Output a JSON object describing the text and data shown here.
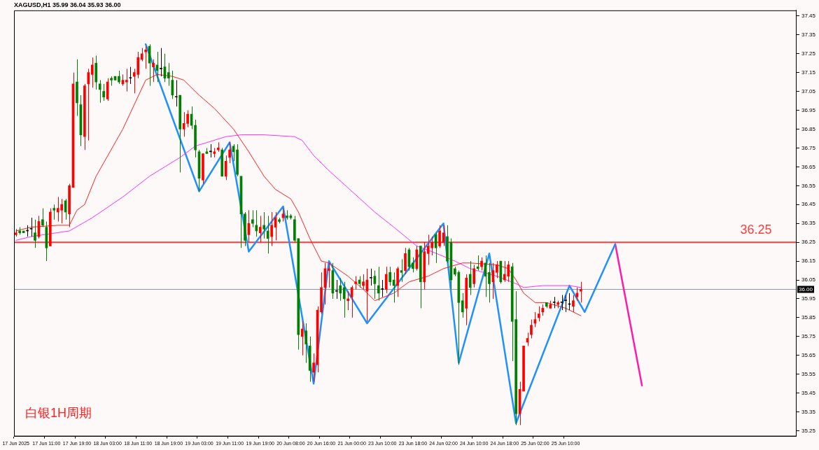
{
  "chart_data": {
    "type": "candlestick",
    "title": "XAGUSD,H1 35.99 36.04 35.93 36.00",
    "categories": [
      "17 Jun 2025",
      null,
      null,
      null,
      null,
      null,
      null,
      null,
      "17 Jun 11:00",
      null,
      null,
      null,
      null,
      null,
      null,
      null,
      "17 Jun 19:00",
      null,
      null,
      null,
      null,
      null,
      null,
      null,
      "18 Jun 03:00",
      null,
      null,
      null,
      null,
      null,
      null,
      null,
      "18 Jun 11:00",
      null,
      null,
      null,
      null,
      null,
      null,
      null,
      "18 Jun 19:00",
      null,
      null,
      null,
      null,
      null,
      null,
      null,
      "19 Jun 03:00",
      null,
      null,
      null,
      null,
      null,
      null,
      null,
      "19 Jun 11:00",
      null,
      null,
      null,
      null,
      null,
      null,
      null,
      "19 Jun 19:00",
      null,
      null,
      null,
      null,
      null,
      null,
      null,
      "20 Jun 08:00",
      null,
      null,
      null,
      null,
      null,
      null,
      null,
      "20 Jun 16:00",
      null,
      null,
      null,
      null,
      null,
      null,
      null,
      "21 Jun 00:00",
      null,
      null,
      null,
      null,
      null,
      null,
      null,
      "23 Jun 10:00",
      null,
      null,
      null,
      null,
      null,
      null,
      null,
      "23 Jun 18:00",
      null,
      null,
      null,
      null,
      null,
      null,
      null,
      "24 Jun 02:00",
      null,
      null,
      null,
      null,
      null,
      null,
      null,
      "24 Jun 10:00",
      null,
      null,
      null,
      null,
      null,
      null,
      null,
      "24 Jun 18:00",
      null,
      null,
      null,
      null,
      null,
      null,
      null,
      "25 Jun 02:00",
      null,
      null,
      null,
      null,
      null,
      null,
      null,
      "25 Jun 10:00",
      null,
      null,
      null,
      null,
      null,
      null,
      null,
      null,
      null,
      null,
      null,
      null,
      null,
      null,
      null,
      null,
      null,
      null,
      null,
      null,
      null,
      null,
      null,
      null,
      null,
      null,
      null,
      null,
      null,
      null,
      null,
      null,
      null,
      null,
      null,
      null,
      null,
      null,
      null,
      null,
      null,
      null,
      null,
      null,
      null,
      null,
      null,
      null,
      null,
      null,
      null,
      null,
      null,
      null,
      null,
      null,
      null,
      null,
      null,
      null
    ],
    "ylim": [
      35.22,
      37.48
    ],
    "yticks": [
      35.25,
      35.35,
      35.45,
      35.55,
      35.65,
      35.75,
      35.85,
      35.95,
      36.05,
      36.15,
      36.25,
      36.35,
      36.45,
      36.55,
      36.65,
      36.75,
      36.85,
      36.95,
      37.05,
      37.15,
      37.25,
      37.35,
      37.45
    ],
    "ref_lines": [
      {
        "axis": "y",
        "value": 36.25,
        "label": "36.25",
        "color": "#ff3b3b"
      },
      {
        "axis": "y",
        "value": 36.0,
        "label": "36.00",
        "color": "#8496ad"
      }
    ],
    "annotations": [
      "白银1H周期"
    ],
    "series": [
      {
        "ohlc": [
          [
            36.29,
            36.32,
            36.28,
            36.3
          ],
          [
            36.31,
            36.33,
            36.29,
            36.3
          ],
          [
            36.31,
            36.31,
            36.3,
            36.3
          ],
          [
            36.31,
            36.34,
            36.28,
            36.31
          ],
          [
            36.32,
            36.38,
            36.28,
            36.32
          ],
          [
            36.3,
            36.37,
            36.22,
            36.26
          ],
          [
            36.28,
            36.39,
            36.27,
            36.36
          ],
          [
            36.37,
            36.43,
            36.33,
            36.34
          ],
          [
            36.33,
            36.36,
            36.15,
            36.22
          ],
          [
            36.23,
            36.43,
            36.23,
            36.41
          ],
          [
            36.43,
            36.45,
            36.37,
            36.42
          ],
          [
            36.41,
            36.49,
            36.36,
            36.43
          ],
          [
            36.42,
            36.48,
            36.35,
            36.45
          ],
          [
            36.47,
            36.48,
            36.37,
            36.41
          ],
          [
            36.4,
            36.56,
            36.33,
            36.55
          ],
          [
            36.54,
            37.15,
            36.54,
            37.09
          ],
          [
            37.1,
            37.22,
            36.92,
            36.99
          ],
          [
            36.98,
            37.03,
            36.76,
            36.82
          ],
          [
            36.81,
            37.09,
            36.74,
            37.08
          ],
          [
            37.09,
            37.17,
            36.79,
            37.15
          ],
          [
            37.14,
            37.23,
            37.07,
            37.19
          ],
          [
            37.2,
            37.24,
            37.06,
            37.1
          ],
          [
            37.09,
            37.11,
            36.99,
            37.06
          ],
          [
            37.05,
            37.09,
            37.0,
            37.02
          ],
          [
            37.01,
            37.12,
            37.0,
            37.1
          ],
          [
            37.12,
            37.13,
            37.08,
            37.11
          ],
          [
            37.13,
            37.13,
            37.11,
            37.11
          ],
          [
            37.13,
            37.16,
            37.09,
            37.1
          ],
          [
            37.09,
            37.14,
            37.08,
            37.11
          ],
          [
            37.1,
            37.17,
            37.05,
            37.11
          ],
          [
            37.12,
            37.18,
            37.09,
            37.12
          ],
          [
            37.13,
            37.17,
            37.04,
            37.15
          ],
          [
            37.14,
            37.26,
            37.12,
            37.23
          ],
          [
            37.22,
            37.28,
            37.21,
            37.25
          ],
          [
            37.26,
            37.29,
            37.17,
            37.27
          ],
          [
            37.29,
            37.3,
            37.08,
            37.2
          ],
          [
            37.18,
            37.22,
            37.1,
            37.2
          ],
          [
            37.19,
            37.26,
            37.1,
            37.16
          ],
          [
            37.17,
            37.28,
            37.13,
            37.17
          ],
          [
            37.18,
            37.25,
            37.1,
            37.12
          ],
          [
            37.15,
            37.2,
            37.08,
            37.12
          ],
          [
            37.11,
            37.16,
            37.01,
            37.03
          ],
          [
            37.02,
            37.11,
            36.97,
            37.02
          ],
          [
            37.03,
            37.03,
            36.62,
            36.85
          ],
          [
            36.85,
            36.94,
            36.81,
            36.88
          ],
          [
            36.88,
            36.95,
            36.86,
            36.93
          ],
          [
            36.93,
            36.97,
            36.85,
            36.87
          ],
          [
            36.87,
            36.9,
            36.7,
            36.74
          ],
          [
            36.73,
            36.74,
            36.52,
            36.59
          ],
          [
            36.58,
            36.72,
            36.56,
            36.72
          ],
          [
            36.73,
            36.75,
            36.72,
            36.72
          ],
          [
            36.73,
            36.77,
            36.7,
            36.73
          ],
          [
            36.72,
            36.75,
            36.7,
            36.73
          ],
          [
            36.74,
            36.78,
            36.73,
            36.75
          ],
          [
            36.74,
            36.75,
            36.6,
            36.6
          ],
          [
            36.6,
            36.71,
            36.58,
            36.68
          ],
          [
            36.7,
            36.78,
            36.67,
            36.74
          ],
          [
            36.76,
            36.77,
            36.68,
            36.73
          ],
          [
            36.74,
            36.77,
            36.6,
            36.61
          ],
          [
            36.6,
            36.6,
            36.22,
            36.4
          ],
          [
            36.4,
            36.41,
            36.23,
            36.26
          ],
          [
            36.29,
            36.42,
            36.25,
            36.35
          ],
          [
            36.37,
            36.42,
            36.33,
            36.35
          ],
          [
            36.34,
            36.42,
            36.28,
            36.31
          ],
          [
            36.3,
            36.39,
            36.25,
            36.33
          ],
          [
            36.34,
            36.41,
            36.27,
            36.32
          ],
          [
            36.31,
            36.39,
            36.19,
            36.27
          ],
          [
            36.28,
            36.41,
            36.23,
            36.34
          ],
          [
            36.33,
            36.41,
            36.26,
            36.38
          ],
          [
            36.37,
            36.38,
            36.35,
            36.36
          ],
          [
            36.38,
            36.43,
            36.36,
            36.4
          ],
          [
            36.39,
            36.42,
            36.37,
            36.38
          ],
          [
            36.39,
            36.4,
            36.37,
            36.38
          ],
          [
            36.37,
            36.39,
            36.25,
            36.26
          ],
          [
            36.27,
            36.27,
            35.68,
            35.76
          ],
          [
            35.75,
            35.83,
            35.65,
            35.79
          ],
          [
            35.78,
            35.82,
            35.61,
            35.71
          ],
          [
            35.7,
            35.75,
            35.51,
            35.57
          ],
          [
            35.56,
            35.66,
            35.51,
            35.61
          ],
          [
            35.6,
            35.91,
            35.56,
            35.89
          ],
          [
            35.88,
            36.09,
            35.87,
            36.01
          ],
          [
            36.01,
            36.14,
            35.92,
            36.11
          ],
          [
            36.1,
            36.14,
            36.01,
            36.11
          ],
          [
            36.1,
            36.14,
            35.95,
            35.98
          ],
          [
            35.99,
            36.05,
            35.95,
            35.99
          ],
          [
            36.02,
            36.06,
            35.94,
            35.98
          ],
          [
            36.01,
            36.04,
            35.85,
            35.95
          ],
          [
            35.94,
            35.99,
            35.89,
            35.95
          ],
          [
            35.96,
            36.02,
            35.85,
            36.01
          ],
          [
            36.03,
            36.07,
            36.0,
            36.04
          ],
          [
            36.05,
            36.07,
            36.01,
            36.03
          ],
          [
            36.02,
            36.08,
            36.0,
            36.04
          ],
          [
            35.99,
            36.11,
            35.83,
            36.05
          ],
          [
            36.06,
            36.11,
            36.02,
            36.06
          ],
          [
            36.07,
            36.1,
            35.95,
            36.03
          ],
          [
            36.02,
            36.12,
            35.94,
            35.98
          ],
          [
            36.0,
            36.05,
            35.96,
            36.0
          ],
          [
            36.0,
            36.12,
            35.98,
            36.08
          ],
          [
            36.09,
            36.12,
            36.02,
            36.04
          ],
          [
            36.05,
            36.09,
            35.93,
            36.02
          ],
          [
            36.02,
            36.12,
            35.96,
            36.11
          ],
          [
            36.1,
            36.16,
            36.04,
            36.09
          ],
          [
            36.1,
            36.22,
            36.08,
            36.19
          ],
          [
            36.21,
            36.22,
            36.1,
            36.12
          ],
          [
            36.14,
            36.17,
            36.09,
            36.11
          ],
          [
            36.11,
            36.23,
            36.1,
            36.21
          ],
          [
            36.23,
            36.23,
            35.9,
            36.04
          ],
          [
            36.04,
            36.25,
            36.0,
            36.2
          ],
          [
            36.19,
            36.29,
            36.13,
            36.23
          ],
          [
            36.22,
            36.28,
            36.18,
            36.25
          ],
          [
            36.29,
            36.3,
            36.14,
            36.22
          ],
          [
            36.23,
            36.34,
            36.22,
            36.31
          ],
          [
            36.25,
            36.34,
            36.23,
            36.3
          ],
          [
            36.28,
            36.34,
            36.14,
            36.15
          ],
          [
            36.25,
            36.27,
            36.0,
            36.05
          ],
          [
            36.11,
            36.12,
            36.07,
            36.08
          ],
          [
            36.09,
            36.1,
            35.6,
            35.93
          ],
          [
            35.94,
            35.98,
            35.85,
            35.88
          ],
          [
            35.9,
            36.08,
            35.81,
            36.06
          ],
          [
            36.08,
            36.15,
            35.97,
            36.01
          ],
          [
            36.03,
            36.13,
            36.01,
            36.11
          ],
          [
            36.12,
            36.18,
            36.1,
            36.11
          ],
          [
            36.12,
            36.17,
            36.1,
            36.15
          ],
          [
            36.14,
            36.18,
            35.96,
            36.07
          ],
          [
            36.09,
            36.14,
            35.93,
            36.03
          ],
          [
            36.04,
            36.14,
            35.95,
            36.1
          ],
          [
            36.09,
            36.15,
            36.06,
            36.13
          ],
          [
            36.15,
            36.15,
            36.03,
            36.04
          ],
          [
            36.05,
            36.15,
            36.04,
            36.08
          ],
          [
            36.07,
            36.15,
            36.04,
            36.13
          ],
          [
            36.12,
            36.14,
            35.62,
            35.83
          ],
          [
            35.84,
            35.99,
            35.28,
            35.34
          ],
          [
            35.34,
            35.51,
            35.28,
            35.47
          ],
          [
            35.46,
            35.7,
            35.46,
            35.7
          ],
          [
            35.72,
            35.77,
            35.7,
            35.74
          ],
          [
            35.76,
            35.84,
            35.74,
            35.81
          ],
          [
            35.82,
            35.88,
            35.8,
            35.84
          ],
          [
            35.85,
            35.91,
            35.83,
            35.87
          ],
          [
            35.88,
            35.92,
            35.86,
            35.9
          ],
          [
            35.93,
            35.93,
            35.9,
            35.91
          ],
          [
            35.9,
            35.94,
            35.9,
            35.92
          ],
          [
            35.93,
            35.96,
            35.9,
            35.93
          ],
          [
            35.92,
            35.94,
            35.9,
            35.93
          ],
          [
            35.93,
            35.97,
            35.89,
            35.93
          ],
          [
            35.94,
            35.97,
            35.88,
            35.94
          ],
          [
            35.92,
            35.98,
            35.89,
            35.92
          ],
          [
            35.91,
            35.97,
            35.88,
            35.94
          ],
          [
            35.96,
            36.01,
            35.94,
            35.98
          ],
          [
            35.99,
            36.04,
            35.93,
            36.0
          ],
          null,
          null,
          null,
          null,
          null,
          null,
          null,
          null,
          null,
          null,
          null,
          null,
          null,
          null,
          null,
          null,
          null,
          null,
          null,
          null,
          null,
          null,
          null,
          null,
          null,
          null,
          null,
          null,
          null,
          null,
          null,
          null,
          null,
          null,
          null,
          null,
          null,
          null,
          null,
          null,
          null,
          null,
          null,
          null,
          null,
          null,
          null,
          null,
          null,
          null,
          null,
          null,
          null,
          null,
          null,
          null
        ],
        "colors": [
          "#ff0000",
          "#008000",
          "#008000",
          "#000000",
          "#000000",
          "#008000",
          "#ff0000",
          "#008000",
          "#008000",
          "#ff0000",
          "#008000",
          "#ff0000",
          "#ff0000",
          "#008000",
          "#ff0000",
          "#ff0000",
          "#008000",
          "#008000",
          "#ff0000",
          "#ff0000",
          "#ff0000",
          "#008000",
          "#008000",
          "#008000",
          "#ff0000",
          "#008000",
          "#008000",
          "#008000",
          "#ff0000",
          "#ff0000",
          "#000000",
          "#ff0000",
          "#ff0000",
          "#ff0000",
          "#ff0000",
          "#008000",
          "#ff0000",
          "#008000",
          "#000000",
          "#008000",
          "#008000",
          "#008000",
          "#000000",
          "#008000",
          "#ff0000",
          "#ff0000",
          "#008000",
          "#008000",
          "#008000",
          "#ff0000",
          "#008000",
          "#000000",
          "#ff0000",
          "#ff0000",
          "#008000",
          "#ff0000",
          "#ff0000",
          "#008000",
          "#008000",
          "#008000",
          "#008000",
          "#ff0000",
          "#008000",
          "#008000",
          "#ff0000",
          "#008000",
          "#008000",
          "#ff0000",
          "#ff0000",
          "#008000",
          "#ff0000",
          "#008000",
          "#008000",
          "#008000",
          "#008000",
          "#ff0000",
          "#008000",
          "#008000",
          "#ff0000",
          "#ff0000",
          "#ff0000",
          "#ff0000",
          "#ff0000",
          "#008000",
          "#000000",
          "#008000",
          "#008000",
          "#ff0000",
          "#ff0000",
          "#ff0000",
          "#008000",
          "#ff0000",
          "#ff0000",
          "#000000",
          "#008000",
          "#008000",
          "#000000",
          "#ff0000",
          "#008000",
          "#008000",
          "#ff0000",
          "#008000",
          "#ff0000",
          "#008000",
          "#008000",
          "#ff0000",
          "#008000",
          "#ff0000",
          "#ff0000",
          "#ff0000",
          "#008000",
          "#ff0000",
          "#ff0000",
          "#008000",
          "#008000",
          "#008000",
          "#008000",
          "#008000",
          "#ff0000",
          "#008000",
          "#ff0000",
          "#008000",
          "#ff0000",
          "#008000",
          "#008000",
          "#ff0000",
          "#ff0000",
          "#008000",
          "#ff0000",
          "#ff0000",
          "#008000",
          "#008000",
          "#ff0000",
          "#ff0000",
          "#ff0000",
          "#ff0000",
          "#ff0000",
          "#ff0000",
          "#ff0000",
          "#008000",
          "#ff0000",
          "#000000",
          "#ff0000",
          "#000000",
          "#000000",
          "#000000",
          "#ff0000",
          "#ff0000",
          "#ff0000",
          null,
          null,
          null,
          null,
          null,
          null,
          null,
          null,
          null,
          null,
          null,
          null,
          null,
          null,
          null,
          null,
          null,
          null,
          null,
          null,
          null,
          null,
          null,
          null,
          null,
          null,
          null,
          null,
          null,
          null,
          null,
          null,
          null,
          null,
          null,
          null,
          null,
          null,
          null,
          null,
          null,
          null,
          null,
          null,
          null,
          null,
          null,
          null,
          null,
          null,
          null,
          null,
          null,
          null,
          null,
          null
        ]
      },
      {
        "type": "line",
        "color": "#ff2020",
        "values": [
          36.31,
          null,
          null,
          null,
          36.33,
          null,
          null,
          null,
          null,
          null,
          null,
          36.34,
          null,
          null,
          36.34,
          null,
          36.42,
          null,
          36.45,
          null,
          null,
          36.6,
          null,
          null,
          null,
          null,
          null,
          null,
          36.85,
          null,
          null,
          null,
          null,
          null,
          37.11,
          null,
          null,
          37.14,
          null,
          null,
          null,
          37.13,
          null,
          null,
          37.11,
          null,
          null,
          null,
          37.03,
          null,
          null,
          null,
          36.96,
          null,
          null,
          null,
          null,
          36.85,
          null,
          null,
          null,
          36.73,
          null,
          null,
          null,
          36.6,
          null,
          null,
          36.53,
          null,
          null,
          null,
          36.48,
          null,
          36.41,
          null,
          null,
          36.27,
          null,
          null,
          36.15,
          null,
          36.14,
          null,
          null,
          null,
          null,
          36.07,
          null,
          null,
          null,
          36.0,
          null,
          null,
          35.94,
          null,
          null,
          null,
          null,
          35.98,
          null,
          null,
          null,
          36.04,
          null,
          null,
          null,
          null,
          36.07,
          null,
          null,
          null,
          36.11,
          null,
          null,
          null,
          null,
          36.14,
          null,
          36.14,
          null,
          null,
          null,
          null,
          null,
          null,
          36.13,
          null,
          null,
          36.11,
          null,
          36.05,
          null,
          35.98,
          null,
          null,
          35.93,
          null,
          null,
          35.93,
          null,
          null,
          null,
          null,
          35.9,
          null,
          null,
          null,
          35.86,
          null,
          null,
          null,
          null,
          null,
          null,
          null,
          null,
          null,
          null,
          null,
          null,
          null,
          null,
          null,
          null,
          null,
          null,
          null,
          null,
          null,
          null,
          null,
          null,
          null,
          null,
          null,
          null,
          null,
          null,
          null,
          null,
          null,
          null,
          null,
          null,
          null,
          null,
          null,
          null,
          null,
          null,
          null,
          null,
          null,
          null,
          null,
          null,
          null,
          null,
          null,
          null,
          null,
          null,
          null,
          null
        ]
      },
      {
        "type": "line",
        "color": "#ff30ff",
        "values": [
          36.26,
          null,
          null,
          null,
          36.28,
          null,
          null,
          null,
          null,
          null,
          null,
          null,
          null,
          null,
          36.31,
          null,
          null,
          null,
          null,
          null,
          36.38,
          null,
          null,
          null,
          null,
          null,
          null,
          null,
          36.49,
          null,
          null,
          null,
          null,
          null,
          null,
          36.6,
          null,
          null,
          null,
          null,
          null,
          null,
          null,
          36.7,
          null,
          null,
          null,
          36.76,
          null,
          null,
          null,
          null,
          null,
          null,
          null,
          36.81,
          null,
          null,
          null,
          36.82,
          null,
          null,
          null,
          null,
          null,
          36.82,
          null,
          null,
          null,
          null,
          null,
          null,
          null,
          36.81,
          null,
          36.79,
          null,
          null,
          36.71,
          null,
          null,
          null,
          36.63,
          null,
          null,
          null,
          null,
          null,
          null,
          null,
          null,
          null,
          null,
          null,
          36.41,
          null,
          null,
          null,
          null,
          36.33,
          null,
          null,
          null,
          null,
          null,
          36.23,
          null,
          null,
          null,
          36.2,
          null,
          null,
          null,
          null,
          null,
          36.15,
          null,
          null,
          null,
          36.11,
          null,
          null,
          null,
          null,
          null,
          null,
          36.07,
          null,
          null,
          null,
          null,
          36.03,
          null,
          36.01,
          null,
          null,
          null,
          null,
          36.02,
          null,
          null,
          null,
          null,
          null,
          null,
          36.02,
          null,
          null,
          36.01,
          null,
          null,
          null,
          null,
          null,
          null,
          null,
          null,
          null,
          null,
          null,
          null,
          null,
          null,
          null,
          null,
          null,
          null,
          null,
          null,
          null,
          null,
          null,
          null,
          null,
          null,
          null,
          null,
          null,
          null,
          null,
          null,
          null,
          null,
          null,
          null,
          null,
          null,
          null,
          null,
          null,
          null,
          null,
          null,
          null,
          null,
          null,
          null,
          null,
          null,
          null,
          null,
          null,
          null,
          null,
          null
        ]
      },
      {
        "type": "line",
        "color": "#1e90ff",
        "values": [
          null,
          null,
          null,
          null,
          null,
          null,
          null,
          null,
          null,
          null,
          null,
          null,
          null,
          null,
          null,
          null,
          null,
          null,
          null,
          null,
          null,
          null,
          null,
          null,
          null,
          null,
          null,
          null,
          null,
          null,
          null,
          null,
          null,
          null,
          37.3,
          null,
          null,
          null,
          null,
          null,
          null,
          null,
          null,
          null,
          null,
          null,
          null,
          null,
          36.52,
          null,
          null,
          null,
          null,
          null,
          null,
          null,
          36.78,
          null,
          null,
          null,
          null,
          36.2,
          null,
          null,
          null,
          null,
          null,
          null,
          null,
          null,
          36.44,
          null,
          null,
          null,
          null,
          null,
          null,
          null,
          35.5,
          null,
          null,
          null,
          36.15,
          null,
          null,
          null,
          null,
          null,
          null,
          null,
          null,
          null,
          35.82,
          null,
          null,
          null,
          null,
          null,
          null,
          null,
          null,
          null,
          null,
          null,
          null,
          null,
          null,
          null,
          null,
          null,
          null,
          null,
          36.35,
          null,
          null,
          null,
          35.61,
          null,
          null,
          null,
          null,
          null,
          null,
          null,
          36.19,
          null,
          null,
          null,
          null,
          null,
          null,
          35.29,
          null,
          null,
          null,
          null,
          null,
          null,
          null,
          null,
          null,
          null,
          null,
          null,
          null,
          36.02,
          null,
          null,
          null,
          35.88,
          null,
          null,
          null,
          null,
          null,
          null,
          null,
          36.24,
          null,
          null,
          null,
          null,
          null,
          null,
          null,
          null,
          null,
          null,
          null,
          null,
          null,
          null,
          null,
          null,
          null,
          null,
          null,
          null,
          null,
          null,
          null,
          null,
          null,
          null,
          null,
          null,
          null,
          null,
          null,
          null,
          null,
          null,
          null,
          null,
          null,
          null,
          null,
          null,
          null,
          null,
          null,
          null,
          null,
          null,
          null
        ]
      },
      {
        "type": "line",
        "color": "#ff1aa8",
        "values": [
          null,
          null,
          null,
          null,
          null,
          null,
          null,
          null,
          null,
          null,
          null,
          null,
          null,
          null,
          null,
          null,
          null,
          null,
          null,
          null,
          null,
          null,
          null,
          null,
          null,
          null,
          null,
          null,
          null,
          null,
          null,
          null,
          null,
          null,
          null,
          null,
          null,
          null,
          null,
          null,
          null,
          null,
          null,
          null,
          null,
          null,
          null,
          null,
          null,
          null,
          null,
          null,
          null,
          null,
          null,
          null,
          null,
          null,
          null,
          null,
          null,
          null,
          null,
          null,
          null,
          null,
          null,
          null,
          null,
          null,
          null,
          null,
          null,
          null,
          null,
          null,
          null,
          null,
          null,
          null,
          null,
          null,
          null,
          null,
          null,
          null,
          null,
          null,
          null,
          null,
          null,
          null,
          null,
          null,
          null,
          null,
          null,
          null,
          null,
          null,
          null,
          null,
          null,
          null,
          null,
          null,
          null,
          null,
          null,
          null,
          null,
          null,
          null,
          null,
          null,
          null,
          null,
          null,
          null,
          null,
          null,
          null,
          null,
          null,
          null,
          null,
          null,
          null,
          null,
          null,
          null,
          null,
          null,
          null,
          null,
          null,
          null,
          null,
          null,
          null,
          null,
          null,
          null,
          null,
          null,
          null,
          null,
          null,
          null,
          null,
          null,
          null,
          null,
          null,
          null,
          null,
          null,
          36.24,
          null,
          null,
          null,
          null,
          null,
          null,
          35.49,
          null,
          null,
          null,
          null,
          null,
          null,
          null,
          null,
          null,
          null,
          null,
          null,
          null,
          null,
          null,
          null,
          null,
          null,
          null,
          null,
          null,
          null,
          null,
          null,
          null,
          null,
          null,
          null,
          null,
          null,
          null,
          null,
          null,
          null,
          null,
          null,
          null,
          null,
          null,
          null
        ]
      }
    ]
  }
}
